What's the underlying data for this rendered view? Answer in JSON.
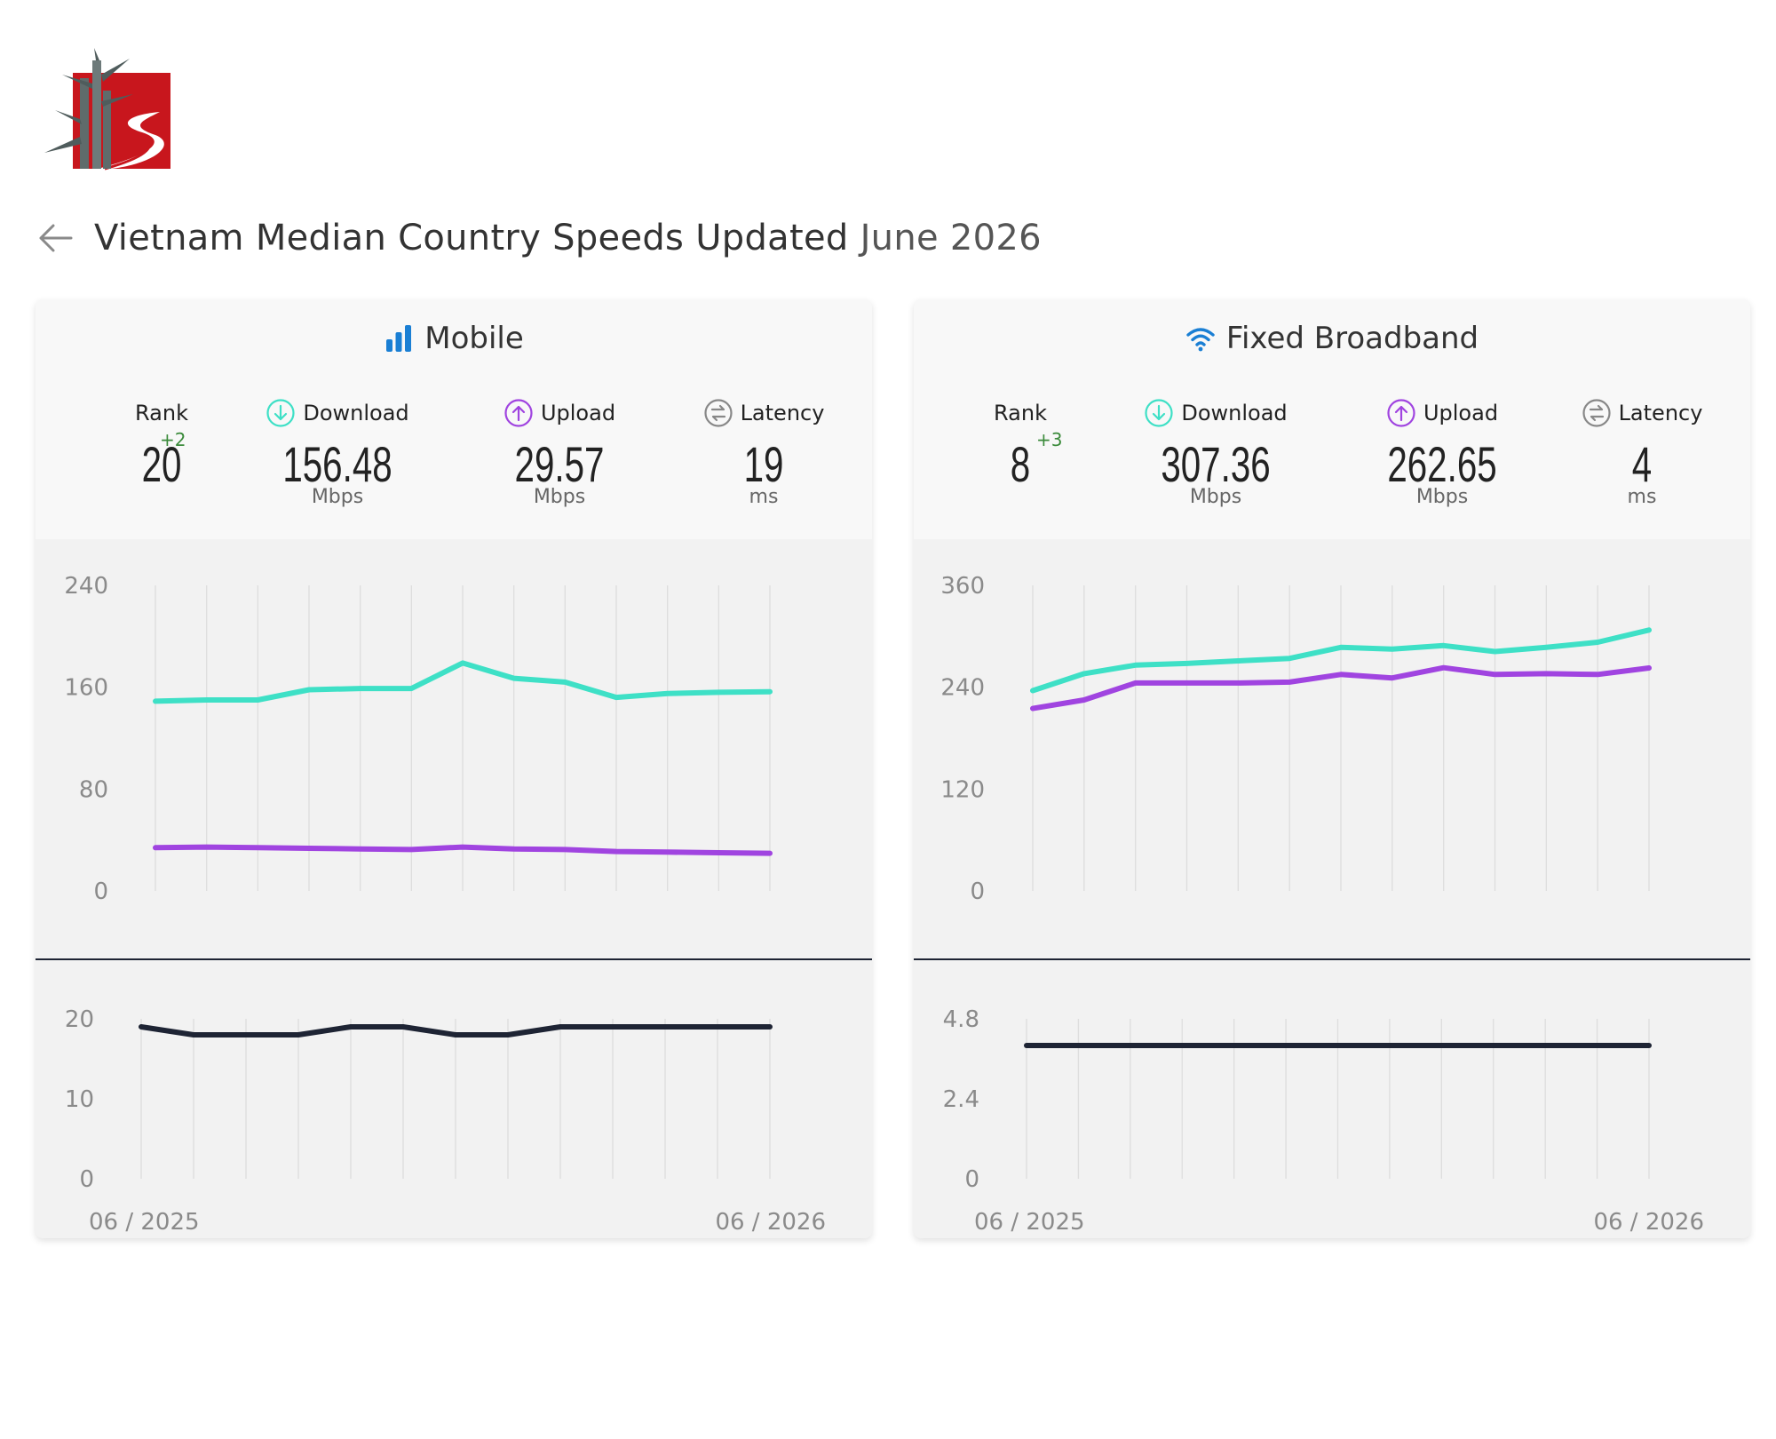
{
  "header": {
    "title": "Vietnam Median Country Speeds Updated",
    "updated": "June 2026"
  },
  "colors": {
    "download": "#3ee0c6",
    "upload": "#a044e0",
    "latency": "#1e2434",
    "mobile_icon": "#1a7fd4",
    "rank_change": "#3a8a3a",
    "logo_red": "#c8161d"
  },
  "labels": {
    "rank": "Rank",
    "download": "Download",
    "upload": "Upload",
    "latency": "Latency",
    "mbps": "Mbps",
    "ms": "ms"
  },
  "cards": {
    "mobile": {
      "title": "Mobile",
      "icon": "signal-bars-icon",
      "rank": "20",
      "rank_change": "+2",
      "download": "156.48",
      "upload": "29.57",
      "latency": "19"
    },
    "fixed": {
      "title": "Fixed Broadband",
      "icon": "wifi-icon",
      "rank": "8",
      "rank_change": "+3",
      "download": "307.36",
      "upload": "262.65",
      "latency": "4"
    }
  },
  "chart_data": [
    {
      "id": "mobile-speed",
      "type": "line",
      "x_start": "06 / 2025",
      "x_end": "06 / 2026",
      "ylim": [
        0,
        240
      ],
      "yticks": [
        "240",
        "160",
        "80",
        "0"
      ],
      "series": [
        {
          "key": "download",
          "values": [
            149,
            150,
            150,
            158,
            159,
            159,
            179,
            167,
            164,
            152,
            155,
            156,
            156.48
          ]
        },
        {
          "key": "upload",
          "values": [
            34,
            34.5,
            34,
            33.5,
            33,
            32.5,
            34.5,
            33,
            32.5,
            31,
            30.5,
            30,
            29.57
          ]
        }
      ]
    },
    {
      "id": "mobile-latency",
      "type": "line",
      "x_start": "06 / 2025",
      "x_end": "06 / 2026",
      "ylim": [
        0,
        20
      ],
      "yticks": [
        "20",
        "10",
        "0"
      ],
      "series": [
        {
          "key": "latency",
          "values": [
            19,
            18,
            18,
            18,
            19,
            19,
            18,
            18,
            19,
            19,
            19,
            19,
            19
          ]
        }
      ]
    },
    {
      "id": "fixed-speed",
      "type": "line",
      "x_start": "06 / 2025",
      "x_end": "06 / 2026",
      "ylim": [
        0,
        360
      ],
      "yticks": [
        "360",
        "240",
        "120",
        "0"
      ],
      "series": [
        {
          "key": "download",
          "values": [
            236,
            256,
            266,
            268,
            271,
            274,
            287,
            285,
            289,
            282,
            287,
            293,
            307.36
          ]
        },
        {
          "key": "upload",
          "values": [
            215,
            225,
            245,
            245,
            245,
            246,
            255,
            251,
            263,
            255,
            256,
            255,
            262.65
          ]
        }
      ]
    },
    {
      "id": "fixed-latency",
      "type": "line",
      "x_start": "06 / 2025",
      "x_end": "06 / 2026",
      "ylim": [
        0,
        4.8
      ],
      "yticks": [
        "4.8",
        "2.4",
        "0"
      ],
      "series": [
        {
          "key": "latency",
          "values": [
            4,
            4,
            4,
            4,
            4,
            4,
            4,
            4,
            4,
            4,
            4,
            4,
            4
          ]
        }
      ]
    }
  ]
}
